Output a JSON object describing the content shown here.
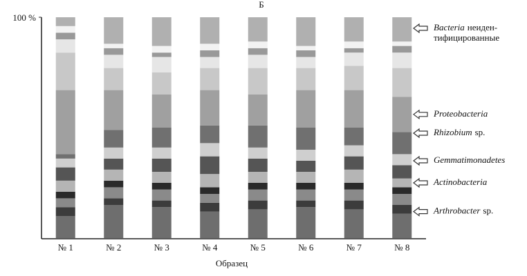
{
  "chart_data": {
    "type": "stacked_bar",
    "title": "Б",
    "xlabel": "Образец",
    "categories": [
      "№ 1",
      "№ 2",
      "№ 3",
      "№ 4",
      "№ 5",
      "№ 6",
      "№ 7",
      "№ 8"
    ],
    "ylim": [
      0,
      100
    ],
    "yticks": [
      {
        "value": 100,
        "label": "100 %"
      }
    ],
    "series": [
      {
        "color": "#6e6e6e",
        "values": [
          10,
          15,
          14,
          12,
          13,
          14,
          13,
          11
        ]
      },
      {
        "color": "#3c3c3c",
        "values": [
          4,
          3,
          3,
          4,
          4,
          3,
          4,
          4
        ]
      },
      {
        "color": "#8a8a8a",
        "values": [
          4,
          5,
          5,
          4,
          5,
          5,
          5,
          5
        ]
      },
      {
        "color": "#2a2a2a",
        "values": [
          3,
          3,
          3,
          3,
          3,
          3,
          3,
          3
        ]
      },
      {
        "color": "#b5b5b5",
        "values": [
          5,
          5,
          5,
          6,
          5,
          5,
          6,
          4
        ]
      },
      {
        "color": "#555555",
        "values": [
          6,
          5,
          6,
          8,
          6,
          5,
          6,
          6
        ]
      },
      {
        "color": "#cfcfcf",
        "values": [
          4,
          5,
          5,
          6,
          5,
          5,
          5,
          5
        ]
      },
      {
        "color": "#707070",
        "values": [
          2,
          8,
          9,
          8,
          10,
          10,
          8,
          10
        ]
      },
      {
        "color": "#a0a0a0",
        "values": [
          29,
          18,
          15,
          16,
          14,
          17,
          17,
          16
        ]
      },
      {
        "color": "#c8c8c8",
        "values": [
          17,
          10,
          10,
          10,
          12,
          10,
          11,
          13
        ]
      },
      {
        "color": "#e6e6e6",
        "values": [
          6,
          6,
          7,
          5,
          6,
          5,
          6,
          7
        ]
      },
      {
        "color": "#999999",
        "values": [
          3,
          3,
          2,
          3,
          3,
          3,
          2,
          3
        ]
      },
      {
        "color": "#f2f2f2",
        "values": [
          3,
          2,
          3,
          3,
          3,
          2,
          3,
          2
        ]
      },
      {
        "color": "#b0b0b0",
        "values": [
          4,
          12,
          13,
          12,
          11,
          13,
          11,
          11
        ]
      }
    ],
    "annotations": [
      {
        "italic": "Bacteria",
        "rest": "неиден-",
        "line2": "тифицированные",
        "y": 95
      },
      {
        "italic": "Proteobacteria",
        "y": 56
      },
      {
        "italic": "Rhizobium",
        "rest": "sp.",
        "y": 47.5
      },
      {
        "italic": "Gemmatimonadetes",
        "y": 35
      },
      {
        "italic": "Actinobacteria",
        "y": 25
      },
      {
        "italic": "Arthrobacter",
        "rest": "sp.",
        "y": 12
      }
    ]
  }
}
